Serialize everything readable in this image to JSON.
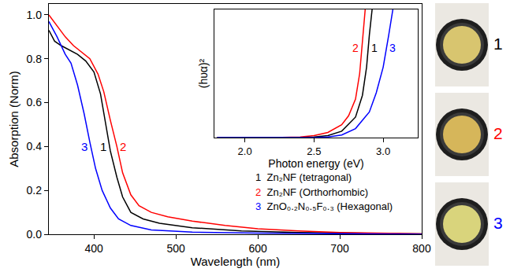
{
  "chart_data": [
    {
      "type": "line",
      "x_label": "Wavelength (nm)",
      "y_label": "Absorption (Norm)",
      "xlim": [
        345,
        800
      ],
      "xticks": [
        400,
        500,
        600,
        700,
        800
      ],
      "ylim": [
        0,
        1.05
      ],
      "yticks": [
        {
          "value": 0,
          "label": "0.0"
        },
        0.2,
        0.4,
        0.6,
        0.8,
        {
          "value": 1,
          "label": "1.0"
        }
      ],
      "grid": false,
      "legend": "right",
      "series": [
        {
          "label": "1",
          "name": "Zn₂NF (tetragonal)",
          "color": "#000000",
          "x": [
            345,
            352,
            360,
            370,
            380,
            390,
            400,
            408,
            415,
            420,
            428,
            435,
            445,
            460,
            480,
            520,
            580,
            650,
            800
          ],
          "values": [
            0.93,
            0.88,
            0.86,
            0.84,
            0.82,
            0.79,
            0.74,
            0.64,
            0.48,
            0.38,
            0.26,
            0.17,
            0.1,
            0.07,
            0.05,
            0.03,
            0.015,
            0.008,
            0.002
          ]
        },
        {
          "label": "2",
          "name": "Zn₂NF (Orthorhombic)",
          "color": "#ff0000",
          "x": [
            345,
            355,
            365,
            375,
            385,
            395,
            405,
            412,
            420,
            428,
            435,
            445,
            455,
            470,
            490,
            520,
            560,
            600,
            650,
            700,
            800
          ],
          "values": [
            1.0,
            0.95,
            0.9,
            0.86,
            0.83,
            0.8,
            0.73,
            0.65,
            0.52,
            0.4,
            0.28,
            0.18,
            0.13,
            0.1,
            0.08,
            0.06,
            0.04,
            0.025,
            0.015,
            0.008,
            0.002
          ]
        },
        {
          "label": "3",
          "name": "ZnO₀.₂N₀.₅F₀.₃ (Hexagonal)",
          "color": "#0000ff",
          "x": [
            345,
            355,
            365,
            372,
            380,
            388,
            395,
            402,
            410,
            420,
            430,
            445,
            470,
            520,
            600,
            800
          ],
          "values": [
            0.97,
            0.9,
            0.82,
            0.78,
            0.68,
            0.55,
            0.42,
            0.3,
            0.2,
            0.12,
            0.07,
            0.04,
            0.02,
            0.01,
            0.005,
            0
          ]
        }
      ]
    },
    {
      "type": "line",
      "x_label": "Photon energy (eV)",
      "y_label": "(hυα)²",
      "xlim": [
        1.78,
        3.25
      ],
      "xticks": [
        {
          "value": 2,
          "label": "2.0"
        },
        2.5,
        {
          "value": 3,
          "label": "3.0"
        }
      ],
      "ylim": [
        0,
        1
      ],
      "yticks": [],
      "tick_labels": "x",
      "grid": false,
      "series": [
        {
          "label": "2",
          "color": "#ff0000",
          "x": [
            1.8,
            2.2,
            2.4,
            2.5,
            2.6,
            2.7,
            2.75,
            2.8,
            2.83,
            2.85,
            2.87
          ],
          "values": [
            0,
            0,
            0.005,
            0.015,
            0.04,
            0.1,
            0.17,
            0.3,
            0.5,
            0.75,
            1.0
          ]
        },
        {
          "label": "1",
          "color": "#000000",
          "x": [
            1.8,
            2.4,
            2.5,
            2.6,
            2.7,
            2.8,
            2.85,
            2.88,
            2.9,
            2.92
          ],
          "values": [
            0,
            0,
            0.005,
            0.015,
            0.05,
            0.16,
            0.33,
            0.55,
            0.8,
            1.0
          ]
        },
        {
          "label": "3",
          "color": "#0000ff",
          "x": [
            1.8,
            2.5,
            2.6,
            2.7,
            2.8,
            2.9,
            2.95,
            3.0,
            3.04,
            3.07
          ],
          "values": [
            0,
            0,
            0.005,
            0.02,
            0.07,
            0.2,
            0.35,
            0.55,
            0.8,
            1.0
          ]
        }
      ]
    }
  ],
  "photos": [
    {
      "label": "1",
      "color": "#d8c56f"
    },
    {
      "label": "2",
      "color": "#d6b65a"
    },
    {
      "label": "3",
      "color": "#d9d47c"
    }
  ]
}
